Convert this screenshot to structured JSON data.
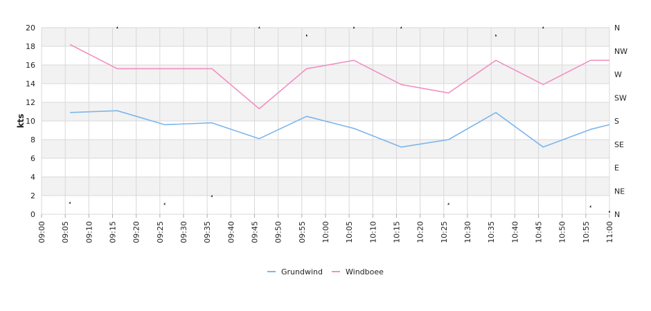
{
  "chart_data": {
    "type": "line",
    "title": "",
    "ylabel": "kts",
    "ylim": [
      0,
      20
    ],
    "y_ticks": [
      "0",
      "2",
      "4",
      "6",
      "8",
      "10",
      "12",
      "14",
      "16",
      "18",
      "20"
    ],
    "x_ticks": [
      "09:00",
      "09:05",
      "09:10",
      "09:15",
      "09:20",
      "09:25",
      "09:30",
      "09:35",
      "09:40",
      "09:45",
      "09:50",
      "09:55",
      "10:00",
      "10:05",
      "10:10",
      "10:15",
      "10:20",
      "10:25",
      "10:30",
      "10:35",
      "10:40",
      "10:45",
      "10:50",
      "10:55",
      "11:00"
    ],
    "xlim": [
      "09:00",
      "11:00"
    ],
    "y2_ticks": [
      "N",
      "NE",
      "E",
      "SE",
      "S",
      "SW",
      "W",
      "NW",
      "N"
    ],
    "grid": "on",
    "legend_position": "bottom-center",
    "colors": {
      "grundwind": "#7cb5ec",
      "windboee": "#f28ec1",
      "band": "#f2f2f2",
      "gridline": "#d8d8d8",
      "direction_marker": "#000000"
    },
    "series": [
      {
        "name": "Grundwind",
        "x": [
          "09:06",
          "09:16",
          "09:26",
          "09:36",
          "09:46",
          "09:56",
          "10:06",
          "10:16",
          "10:26",
          "10:36",
          "10:46",
          "10:56",
          "11:00"
        ],
        "values": [
          10.9,
          11.1,
          9.6,
          9.8,
          8.1,
          10.5,
          9.2,
          7.2,
          8.0,
          10.9,
          7.2,
          9.1,
          9.6
        ]
      },
      {
        "name": "Windboee",
        "x": [
          "09:06",
          "09:16",
          "09:26",
          "09:36",
          "09:46",
          "09:56",
          "10:06",
          "10:16",
          "10:26",
          "10:36",
          "10:46",
          "10:56",
          "11:00"
        ],
        "values": [
          18.2,
          15.6,
          15.6,
          15.6,
          11.3,
          15.6,
          16.5,
          13.9,
          13.0,
          16.5,
          13.9,
          16.5,
          16.5
        ]
      }
    ],
    "direction_markers": {
      "x": [
        "09:06",
        "09:16",
        "09:26",
        "09:36",
        "09:46",
        "09:56",
        "10:06",
        "10:16",
        "10:26",
        "10:36",
        "10:46",
        "10:56",
        "11:00"
      ],
      "degrees": [
        22,
        360,
        20,
        35,
        360,
        345,
        360,
        360,
        20,
        345,
        360,
        15,
        5
      ]
    }
  }
}
